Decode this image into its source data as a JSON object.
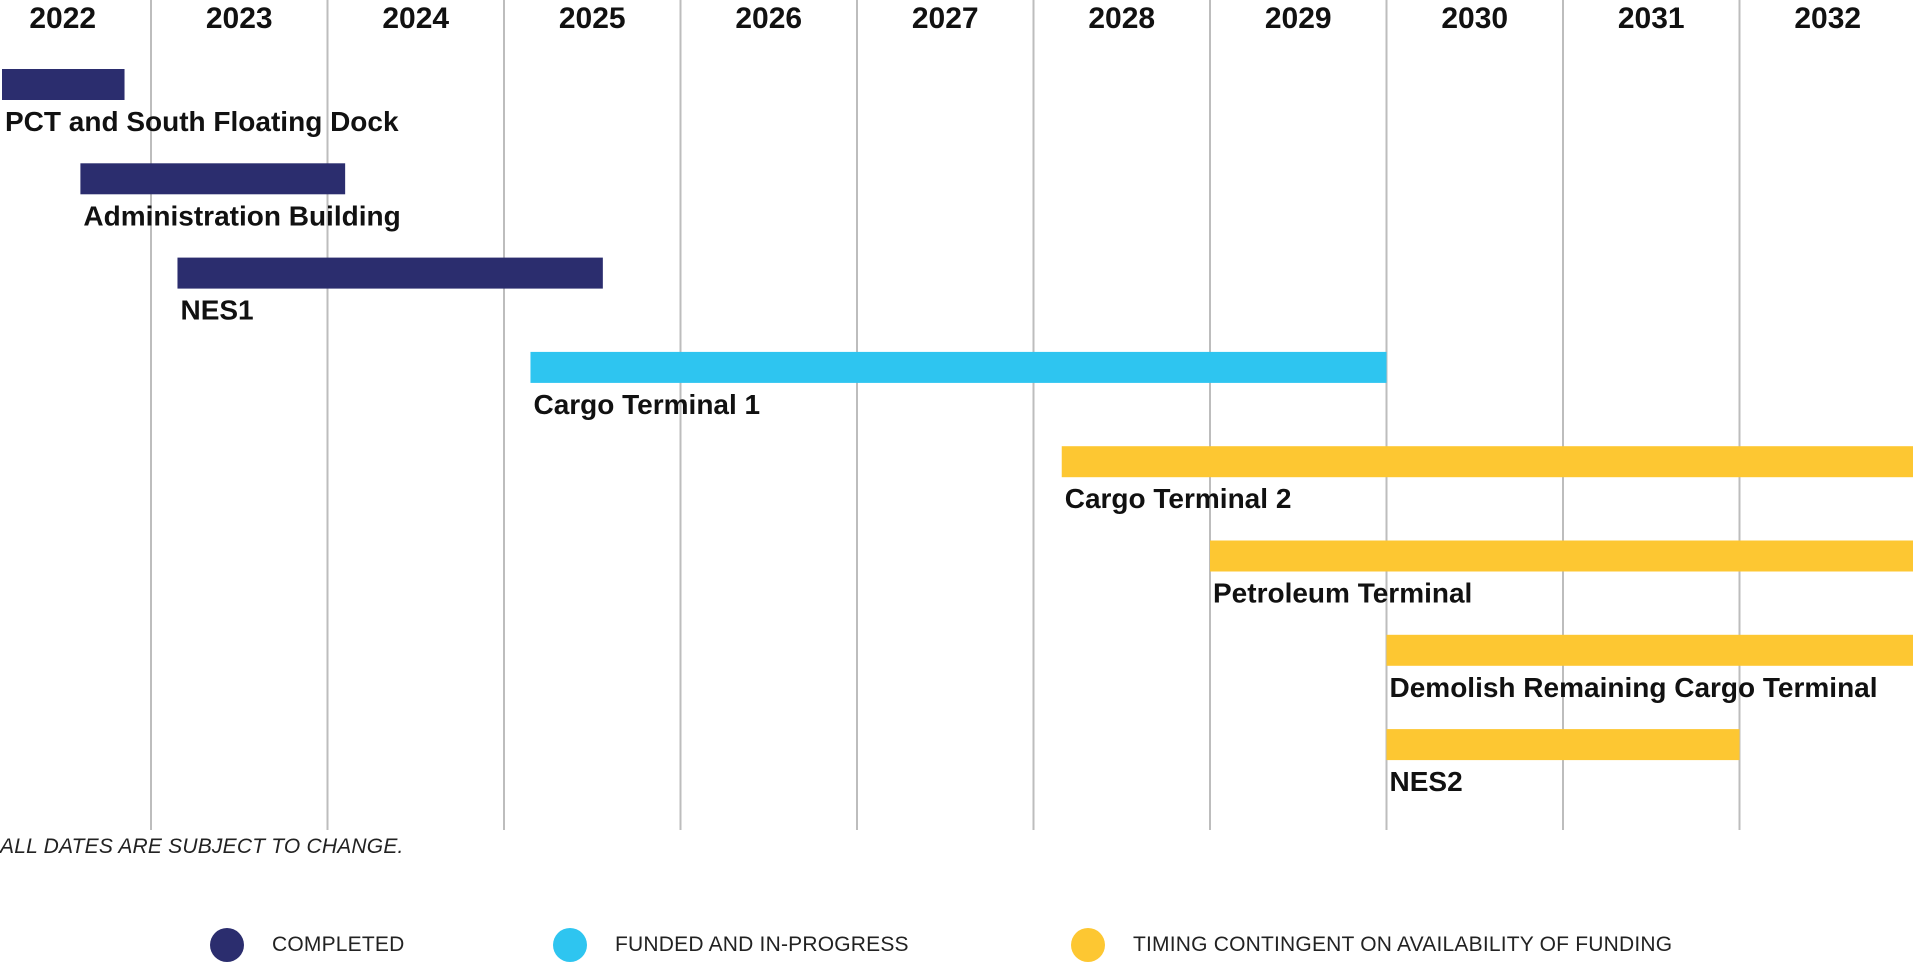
{
  "chart_data": {
    "type": "gantt",
    "title": "",
    "years": [
      "2022",
      "2023",
      "2024",
      "2025",
      "2026",
      "2027",
      "2028",
      "2029",
      "2030",
      "2031",
      "2032"
    ],
    "tasks": [
      {
        "name": "PCT and South Floating Dock",
        "start": 2022.0,
        "end": 2022.85,
        "status": "completed"
      },
      {
        "name": "Administration Building",
        "start": 2022.6,
        "end": 2024.1,
        "status": "completed"
      },
      {
        "name": "NES1",
        "start": 2023.15,
        "end": 2025.56,
        "status": "completed"
      },
      {
        "name": "Cargo Terminal 1",
        "start": 2025.15,
        "end": 2030.0,
        "status": "funded"
      },
      {
        "name": "Cargo Terminal 2",
        "start": 2028.16,
        "end": 2033.0,
        "status": "contingent"
      },
      {
        "name": "Petroleum Terminal",
        "start": 2029.0,
        "end": 2033.0,
        "status": "contingent"
      },
      {
        "name": "Demolish Remaining Cargo Terminal",
        "start": 2030.0,
        "end": 2033.0,
        "status": "contingent"
      },
      {
        "name": "NES2",
        "start": 2030.0,
        "end": 2032.0,
        "status": "contingent"
      }
    ],
    "status_colors": {
      "completed": "#2b2d6e",
      "funded": "#2ec5f0",
      "contingent": "#fdc732"
    },
    "legend": [
      {
        "status": "completed",
        "label": "COMPLETED"
      },
      {
        "status": "funded",
        "label": "FUNDED AND IN-PROGRESS"
      },
      {
        "status": "contingent",
        "label": "TIMING CONTINGENT ON AVAILABILITY OF FUNDING"
      }
    ],
    "legend_position": "bottom",
    "grid": true
  },
  "footnote": "ALL DATES ARE SUBJECT TO CHANGE."
}
